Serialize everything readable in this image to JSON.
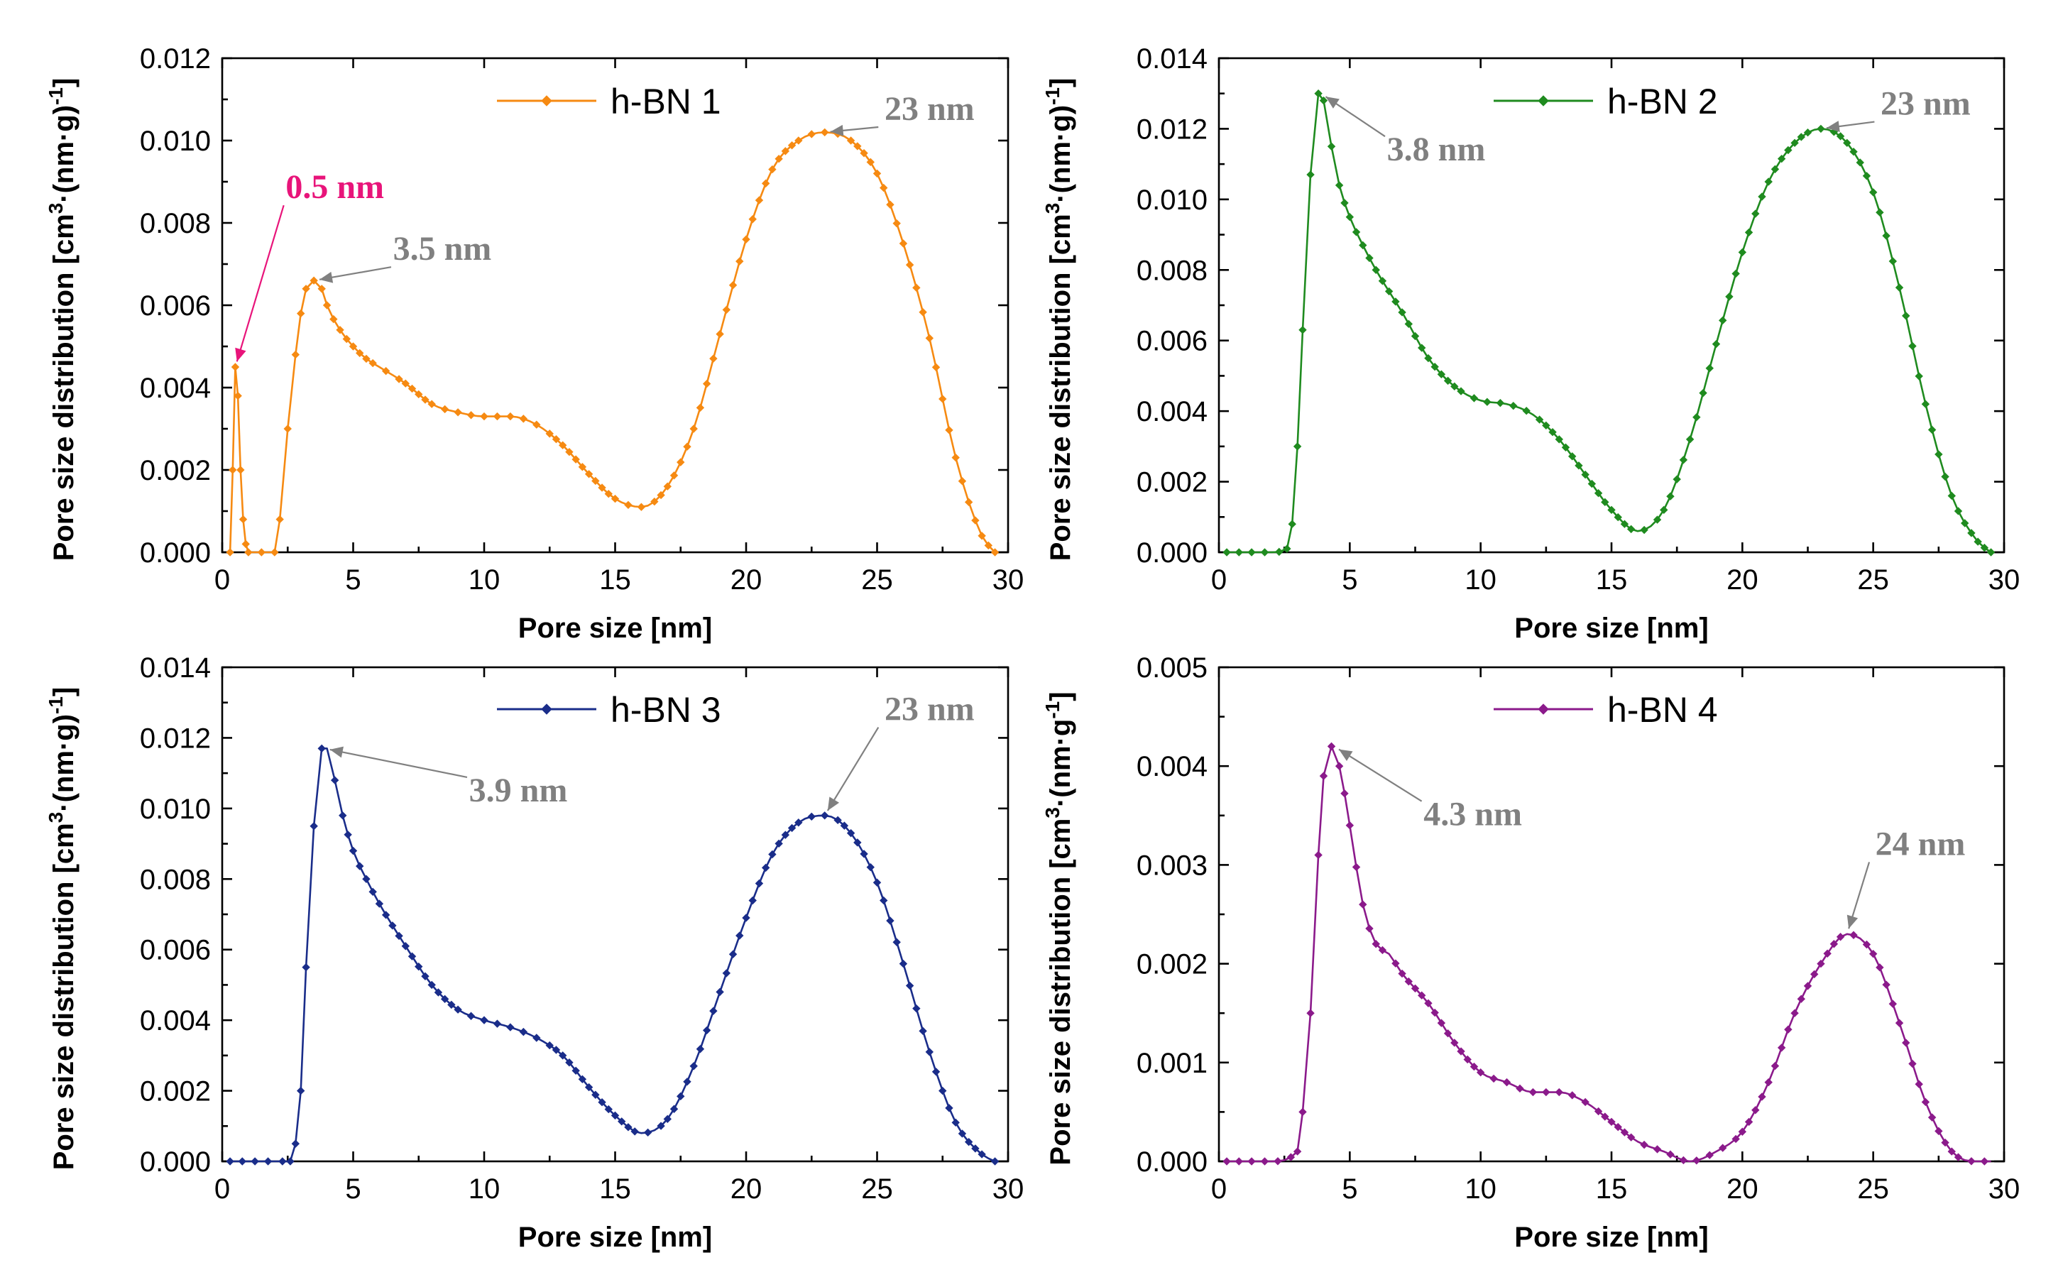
{
  "chart_data": [
    {
      "type": "line",
      "panel": "h-BN 1",
      "legend": "h-BN 1",
      "color": "#F68A12",
      "xlabel": "Pore size [nm]",
      "ylabel": "Pore size distribution [cm³·(nm·g)⁻¹]",
      "xlim": [
        0,
        30
      ],
      "ylim": [
        0,
        0.012
      ],
      "xticks": [
        0,
        5,
        10,
        15,
        20,
        25,
        30
      ],
      "xtick_labels": [
        "0",
        "5",
        "10",
        "15",
        "20",
        "25",
        "30"
      ],
      "yticks": [
        0,
        0.002,
        0.004,
        0.006,
        0.008,
        0.01,
        0.012
      ],
      "ytick_labels": [
        "0.000",
        "0.002",
        "0.004",
        "0.006",
        "0.008",
        "0.010",
        "0.012"
      ],
      "x": [
        0.3,
        0.4,
        0.5,
        0.6,
        0.7,
        0.8,
        0.9,
        1.0,
        1.5,
        2.0,
        2.2,
        2.5,
        2.8,
        3.0,
        3.2,
        3.5,
        3.8,
        4.0,
        4.5,
        5.0,
        5.5,
        6.0,
        7.0,
        8.0,
        9.0,
        10.0,
        11.0,
        12.0,
        13.0,
        14.0,
        15.0,
        16.0,
        17.0,
        18.0,
        19.0,
        20.0,
        21.0,
        22.0,
        23.0,
        24.0,
        25.0,
        26.0,
        27.0,
        28.0,
        29.0,
        29.5
      ],
      "y": [
        0.0,
        0.002,
        0.0045,
        0.0038,
        0.002,
        0.0008,
        0.0002,
        0.0,
        0.0,
        0.0,
        0.0008,
        0.003,
        0.0048,
        0.0058,
        0.0064,
        0.0066,
        0.0064,
        0.006,
        0.0054,
        0.005,
        0.0047,
        0.0045,
        0.0041,
        0.0036,
        0.0034,
        0.0033,
        0.0033,
        0.0031,
        0.0026,
        0.0019,
        0.0013,
        0.0011,
        0.0016,
        0.003,
        0.0053,
        0.0076,
        0.0093,
        0.01,
        0.0102,
        0.01,
        0.0092,
        0.0075,
        0.0052,
        0.0023,
        0.0004,
        0.0
      ],
      "annotations": [
        {
          "text": "0.5 nm",
          "x": 0.5,
          "y": 0.0045,
          "label_x": 4.3,
          "label_y": 0.0086,
          "color": "#E8147A"
        },
        {
          "text": "3.5 nm",
          "x": 3.5,
          "y": 0.0066,
          "label_x": 8.4,
          "label_y": 0.0071,
          "color": "#808080"
        },
        {
          "text": "23 nm",
          "x": 23.0,
          "y": 0.0102,
          "label_x": 27.0,
          "label_y": 0.0105,
          "color": "#808080"
        }
      ]
    },
    {
      "type": "line",
      "panel": "h-BN 2",
      "legend": "h-BN  2",
      "color": "#1F8B1F",
      "xlabel": "Pore size [nm]",
      "ylabel": "Pore size distribution [cm³·(nm·g)⁻¹]",
      "xlim": [
        0,
        30
      ],
      "ylim": [
        0,
        0.014
      ],
      "xticks": [
        0,
        5,
        10,
        15,
        20,
        25,
        30
      ],
      "xtick_labels": [
        "0",
        "5",
        "10",
        "15",
        "20",
        "25",
        "30"
      ],
      "yticks": [
        0,
        0.002,
        0.004,
        0.006,
        0.008,
        0.01,
        0.012,
        0.014
      ],
      "ytick_labels": [
        "0.000",
        "0.002",
        "0.004",
        "0.006",
        "0.008",
        "0.010",
        "0.012",
        "0.014"
      ],
      "x": [
        0.3,
        1.0,
        2.0,
        2.6,
        2.8,
        3.0,
        3.2,
        3.5,
        3.8,
        4.0,
        4.3,
        4.6,
        5.0,
        5.5,
        6.0,
        7.0,
        8.0,
        9.0,
        10.0,
        11.0,
        12.0,
        13.0,
        14.0,
        15.0,
        16.0,
        17.0,
        18.0,
        19.0,
        20.0,
        21.0,
        22.0,
        23.0,
        24.0,
        25.0,
        26.0,
        27.0,
        28.0,
        29.0,
        29.5
      ],
      "y": [
        0.0,
        0.0,
        0.0,
        0.0001,
        0.0008,
        0.003,
        0.0063,
        0.0107,
        0.013,
        0.0128,
        0.0115,
        0.0104,
        0.0095,
        0.0087,
        0.008,
        0.0068,
        0.0055,
        0.0047,
        0.0043,
        0.0042,
        0.0039,
        0.0032,
        0.0022,
        0.0012,
        0.0006,
        0.0012,
        0.0032,
        0.0059,
        0.0085,
        0.0105,
        0.0116,
        0.012,
        0.0116,
        0.0102,
        0.0075,
        0.0042,
        0.0016,
        0.0003,
        0.0
      ],
      "annotations": [
        {
          "text": "3.8 nm",
          "x": 3.9,
          "y": 0.013,
          "label_x": 8.3,
          "label_y": 0.0111,
          "color": "#808080"
        },
        {
          "text": "23 nm",
          "x": 23.0,
          "y": 0.012,
          "label_x": 27.0,
          "label_y": 0.0124,
          "color": "#808080"
        }
      ]
    },
    {
      "type": "line",
      "panel": "h-BN 3",
      "legend": "h-BN 3",
      "color": "#1A2D8A",
      "xlabel": "Pore size [nm]",
      "ylabel": "Pore size distribution [cm³·(nm·g)⁻¹]",
      "xlim": [
        0,
        30
      ],
      "ylim": [
        0,
        0.014
      ],
      "xticks": [
        0,
        5,
        10,
        15,
        20,
        25,
        30
      ],
      "xtick_labels": [
        "0",
        "5",
        "10",
        "15",
        "20",
        "25",
        "30"
      ],
      "yticks": [
        0,
        0.002,
        0.004,
        0.006,
        0.008,
        0.01,
        0.012,
        0.014
      ],
      "ytick_labels": [
        "0.000",
        "0.002",
        "0.004",
        "0.006",
        "0.008",
        "0.010",
        "0.012",
        "0.014"
      ],
      "x": [
        0.3,
        1.0,
        2.0,
        2.6,
        2.8,
        3.0,
        3.2,
        3.5,
        3.8,
        4.0,
        4.3,
        4.6,
        5.0,
        5.5,
        6.0,
        7.0,
        8.0,
        9.0,
        10.0,
        11.0,
        12.0,
        13.0,
        14.0,
        15.0,
        16.0,
        17.0,
        18.0,
        19.0,
        20.0,
        21.0,
        22.0,
        23.0,
        24.0,
        25.0,
        26.0,
        27.0,
        28.0,
        29.0,
        29.5
      ],
      "y": [
        0.0,
        0.0,
        0.0,
        0.0,
        0.0005,
        0.002,
        0.0055,
        0.0095,
        0.0117,
        0.0117,
        0.0108,
        0.0098,
        0.0088,
        0.008,
        0.0073,
        0.0061,
        0.005,
        0.0043,
        0.004,
        0.0038,
        0.0035,
        0.003,
        0.0021,
        0.0013,
        0.0008,
        0.0012,
        0.0027,
        0.0048,
        0.0069,
        0.0087,
        0.0096,
        0.0098,
        0.0093,
        0.0079,
        0.0056,
        0.0031,
        0.0011,
        0.0002,
        0.0
      ],
      "annotations": [
        {
          "text": "3.9 nm",
          "x": 3.9,
          "y": 0.0117,
          "label_x": 11.3,
          "label_y": 0.0102,
          "color": "#808080"
        },
        {
          "text": "23 nm",
          "x": 23.0,
          "y": 0.0098,
          "label_x": 27.0,
          "label_y": 0.0125,
          "color": "#808080"
        }
      ]
    },
    {
      "type": "line",
      "panel": "h-BN 4",
      "legend": "h-BN 4",
      "color": "#8B1A8B",
      "xlabel": "Pore size [nm]",
      "ylabel": "Pore size distribution [cm³·(nm·g⁻¹]",
      "xlim": [
        0,
        30
      ],
      "ylim": [
        0,
        0.005
      ],
      "xticks": [
        0,
        5,
        10,
        15,
        20,
        25,
        30
      ],
      "xtick_labels": [
        "0",
        "5",
        "10",
        "15",
        "20",
        "25",
        "30"
      ],
      "yticks": [
        0,
        0.001,
        0.002,
        0.003,
        0.004,
        0.005
      ],
      "ytick_labels": [
        "0.000",
        "0.001",
        "0.002",
        "0.003",
        "0.004",
        "0.005"
      ],
      "x": [
        0.3,
        1.0,
        2.0,
        3.0,
        3.2,
        3.5,
        3.8,
        4.0,
        4.3,
        4.6,
        5.0,
        5.5,
        6.0,
        6.5,
        7.0,
        8.0,
        9.0,
        10.0,
        11.0,
        12.0,
        13.0,
        14.0,
        15.0,
        16.0,
        17.0,
        18.0,
        19.0,
        20.0,
        21.0,
        22.0,
        23.0,
        24.0,
        25.0,
        26.0,
        27.0,
        28.0,
        29.0,
        29.5
      ],
      "y": [
        0.0,
        0.0,
        0.0,
        0.0001,
        0.0005,
        0.0015,
        0.0031,
        0.0039,
        0.0042,
        0.004,
        0.0034,
        0.0026,
        0.0022,
        0.0021,
        0.0019,
        0.0016,
        0.0012,
        0.0009,
        0.0008,
        0.0007,
        0.0007,
        0.0006,
        0.0004,
        0.0002,
        0.0001,
        0.0,
        0.0001,
        0.0003,
        0.0008,
        0.0015,
        0.002,
        0.0023,
        0.0021,
        0.0014,
        0.0006,
        0.0001,
        0.0,
        0.0
      ],
      "annotations": [
        {
          "text": "4.3 nm",
          "x": 4.4,
          "y": 0.0042,
          "label_x": 9.7,
          "label_y": 0.0034,
          "color": "#808080"
        },
        {
          "text": "24 nm",
          "x": 24.0,
          "y": 0.0023,
          "label_x": 26.8,
          "label_y": 0.0031,
          "color": "#808080"
        }
      ]
    }
  ]
}
